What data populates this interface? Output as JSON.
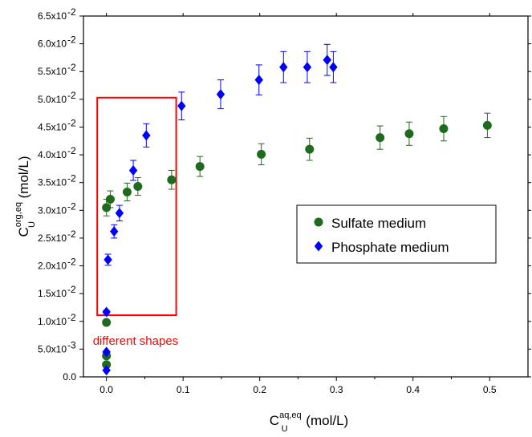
{
  "chart_data": {
    "type": "scatter",
    "xlabel": {
      "main": "C",
      "sub": "U",
      "sup": "aq,eq",
      "unit": " (mol/L)"
    },
    "ylabel": {
      "main": "C",
      "sub": "U",
      "sup": "org,eq",
      "unit": " (mol/L)"
    },
    "xlim": [
      -0.03,
      0.55
    ],
    "ylim": [
      0.0,
      0.065
    ],
    "x_ticks": [
      {
        "value": 0.0,
        "label": "0.0"
      },
      {
        "value": 0.1,
        "label": "0.1"
      },
      {
        "value": 0.2,
        "label": "0.2"
      },
      {
        "value": 0.3,
        "label": "0.3"
      },
      {
        "value": 0.4,
        "label": "0.4"
      },
      {
        "value": 0.5,
        "label": "0.5"
      }
    ],
    "y_ticks": [
      {
        "value": 0.0,
        "label": "0.0",
        "exp": ""
      },
      {
        "value": 0.005,
        "label": "5.0x10",
        "exp": "-3"
      },
      {
        "value": 0.01,
        "label": "1.0x10",
        "exp": "-2"
      },
      {
        "value": 0.015,
        "label": "1.5x10",
        "exp": "-2"
      },
      {
        "value": 0.02,
        "label": "2.0x10",
        "exp": "-2"
      },
      {
        "value": 0.025,
        "label": "2.5x10",
        "exp": "-2"
      },
      {
        "value": 0.03,
        "label": "3.0x10",
        "exp": "-2"
      },
      {
        "value": 0.035,
        "label": "3.5x10",
        "exp": "-2"
      },
      {
        "value": 0.04,
        "label": "4.0x10",
        "exp": "-2"
      },
      {
        "value": 0.045,
        "label": "4.5x10",
        "exp": "-2"
      },
      {
        "value": 0.05,
        "label": "5.0x10",
        "exp": "-2"
      },
      {
        "value": 0.055,
        "label": "5.5x10",
        "exp": "-2"
      },
      {
        "value": 0.06,
        "label": "6.0x10",
        "exp": "-2"
      },
      {
        "value": 0.065,
        "label": "6.5x10",
        "exp": "-2"
      }
    ],
    "grid": false,
    "legend_placement": "center-right",
    "series": [
      {
        "name": "Sulfate medium",
        "marker": "circle",
        "color": "#1e6b1e",
        "points": [
          {
            "x": 0.0,
            "y": 0.0022,
            "err": 0.0
          },
          {
            "x": 0.0,
            "y": 0.0038,
            "err": 0.0
          },
          {
            "x": 0.0,
            "y": 0.0098,
            "err": 0.0
          },
          {
            "x": 0.0,
            "y": 0.0305,
            "err": 0.0015
          },
          {
            "x": 0.005,
            "y": 0.032,
            "err": 0.0015
          },
          {
            "x": 0.027,
            "y": 0.0333,
            "err": 0.0016
          },
          {
            "x": 0.041,
            "y": 0.0343,
            "err": 0.0016
          },
          {
            "x": 0.085,
            "y": 0.0355,
            "err": 0.0017
          },
          {
            "x": 0.122,
            "y": 0.0379,
            "err": 0.0018
          },
          {
            "x": 0.202,
            "y": 0.0401,
            "err": 0.0019
          },
          {
            "x": 0.265,
            "y": 0.041,
            "err": 0.002
          },
          {
            "x": 0.357,
            "y": 0.0431,
            "err": 0.0021
          },
          {
            "x": 0.395,
            "y": 0.0438,
            "err": 0.0021
          },
          {
            "x": 0.44,
            "y": 0.0447,
            "err": 0.0022
          },
          {
            "x": 0.497,
            "y": 0.0453,
            "err": 0.0022
          }
        ]
      },
      {
        "name": "Phosphate medium",
        "marker": "diamond",
        "color": "#0000ff",
        "points": [
          {
            "x": 0.0,
            "y": 0.0012,
            "err": 0.0
          },
          {
            "x": 0.0,
            "y": 0.0045,
            "err": 0.0
          },
          {
            "x": 0.0,
            "y": 0.0117,
            "err": 0.0003
          },
          {
            "x": 0.002,
            "y": 0.0211,
            "err": 0.001
          },
          {
            "x": 0.01,
            "y": 0.0262,
            "err": 0.0012
          },
          {
            "x": 0.017,
            "y": 0.0295,
            "err": 0.0014
          },
          {
            "x": 0.035,
            "y": 0.0372,
            "err": 0.0018
          },
          {
            "x": 0.052,
            "y": 0.0435,
            "err": 0.0021
          },
          {
            "x": 0.098,
            "y": 0.0488,
            "err": 0.0025
          },
          {
            "x": 0.149,
            "y": 0.0509,
            "err": 0.0026
          },
          {
            "x": 0.199,
            "y": 0.0535,
            "err": 0.0027
          },
          {
            "x": 0.231,
            "y": 0.0558,
            "err": 0.0028
          },
          {
            "x": 0.262,
            "y": 0.0558,
            "err": 0.0028
          },
          {
            "x": 0.288,
            "y": 0.0571,
            "err": 0.0028
          },
          {
            "x": 0.296,
            "y": 0.0558,
            "err": 0.0028
          }
        ]
      }
    ],
    "annotations": [
      {
        "kind": "rectangle",
        "color": "#ff0000",
        "x_range": [
          -0.012,
          0.091
        ],
        "y_range": [
          0.0111,
          0.0503
        ]
      },
      {
        "kind": "text",
        "text": "different shapes",
        "color": "#ff0000",
        "x": 0.038,
        "y": 0.0058
      }
    ]
  }
}
